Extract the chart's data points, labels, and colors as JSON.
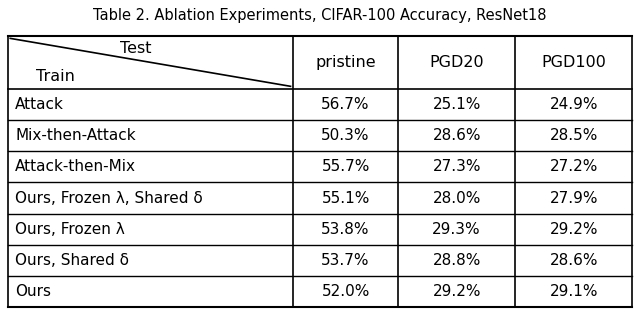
{
  "title": "Table 2. Ablation Experiments, CIFAR-100 Accuracy, ResNet18",
  "col_headers": [
    "pristine",
    "PGD20",
    "PGD100"
  ],
  "row_labels": [
    "Attack",
    "Mix-then-Attack",
    "Attack-then-Mix",
    "Ours, Frozen λ, Shared δ",
    "Ours, Frozen λ",
    "Ours, Shared δ",
    "Ours"
  ],
  "data": [
    [
      "56.7%",
      "25.1%",
      "24.9%"
    ],
    [
      "50.3%",
      "28.6%",
      "28.5%"
    ],
    [
      "55.7%",
      "27.3%",
      "27.2%"
    ],
    [
      "55.1%",
      "28.0%",
      "27.9%"
    ],
    [
      "53.8%",
      "29.3%",
      "29.2%"
    ],
    [
      "53.7%",
      "28.8%",
      "28.6%"
    ],
    [
      "52.0%",
      "29.2%",
      "29.1%"
    ]
  ],
  "header_test": "Test",
  "header_train": "Train",
  "bg_color": "#ffffff",
  "text_color": "#000000",
  "line_color": "#000000",
  "title_fontsize": 10.5,
  "cell_fontsize": 11.0,
  "header_fontsize": 11.5
}
